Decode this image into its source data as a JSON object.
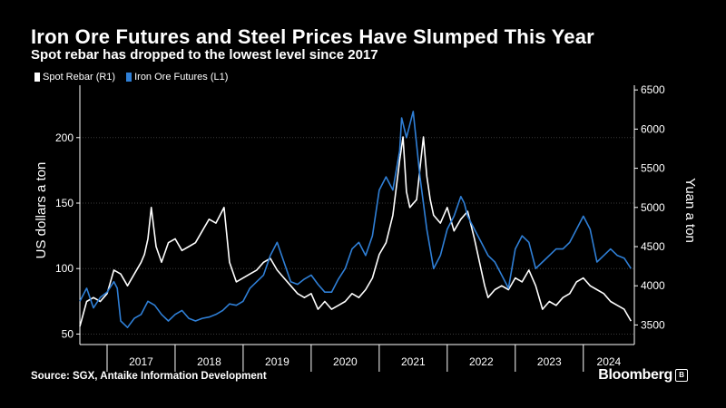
{
  "title": "Iron Ore Futures and Steel Prices Have Slumped This Year",
  "subtitle": "Spot rebar has dropped to the lowest level since 2017",
  "source": "Source: SGX, Antaike Information Development",
  "brand": "Bloomberg",
  "brand_badge": "B",
  "chart_data": {
    "type": "line",
    "categories": [
      "2017",
      "2018",
      "2019",
      "2020",
      "2021",
      "2022",
      "2023",
      "2024"
    ],
    "ylabel_left": "US dollars a ton",
    "ylabel_right": "Yuan a ton",
    "left_ticks": [
      "50",
      "100",
      "150",
      "200"
    ],
    "right_ticks": [
      "3500",
      "4000",
      "4500",
      "5000",
      "5500",
      "6000",
      "6500"
    ],
    "ylim_left": [
      42,
      240
    ],
    "ylim_right": [
      3250,
      6560
    ],
    "x_range": [
      2016.6,
      2024.75
    ],
    "legend_position": "top-left",
    "series": [
      {
        "name": "Spot Rebar (R1)",
        "axis": "right",
        "color": "#ffffff",
        "x": [
          2016.6,
          2016.7,
          2016.8,
          2016.9,
          2017.0,
          2017.1,
          2017.2,
          2017.3,
          2017.4,
          2017.5,
          2017.55,
          2017.6,
          2017.65,
          2017.72,
          2017.8,
          2017.9,
          2018.0,
          2018.1,
          2018.2,
          2018.3,
          2018.4,
          2018.5,
          2018.6,
          2018.72,
          2018.8,
          2018.9,
          2019.0,
          2019.1,
          2019.2,
          2019.3,
          2019.4,
          2019.5,
          2019.6,
          2019.7,
          2019.8,
          2019.9,
          2020.0,
          2020.1,
          2020.2,
          2020.3,
          2020.4,
          2020.5,
          2020.6,
          2020.7,
          2020.8,
          2020.9,
          2021.0,
          2021.1,
          2021.2,
          2021.3,
          2021.35,
          2021.4,
          2021.45,
          2021.5,
          2021.55,
          2021.6,
          2021.65,
          2021.7,
          2021.75,
          2021.8,
          2021.9,
          2022.0,
          2022.1,
          2022.2,
          2022.3,
          2022.4,
          2022.5,
          2022.55,
          2022.6,
          2022.7,
          2022.8,
          2022.9,
          2023.0,
          2023.1,
          2023.2,
          2023.3,
          2023.4,
          2023.5,
          2023.6,
          2023.7,
          2023.8,
          2023.9,
          2024.0,
          2024.1,
          2024.2,
          2024.3,
          2024.4,
          2024.5,
          2024.6,
          2024.7
        ],
        "y": [
          3480,
          3800,
          3850,
          3800,
          3900,
          4200,
          4150,
          4000,
          4150,
          4300,
          4400,
          4600,
          5000,
          4500,
          4300,
          4550,
          4600,
          4450,
          4500,
          4550,
          4700,
          4850,
          4800,
          5000,
          4300,
          4050,
          4100,
          4150,
          4200,
          4300,
          4350,
          4200,
          4100,
          4000,
          3900,
          3850,
          3900,
          3700,
          3800,
          3700,
          3750,
          3800,
          3900,
          3850,
          3950,
          4100,
          4400,
          4550,
          4900,
          5600,
          5900,
          5200,
          5000,
          5050,
          5100,
          5500,
          5900,
          5400,
          5100,
          4900,
          4800,
          5000,
          4700,
          4850,
          4950,
          4600,
          4200,
          4000,
          3850,
          3950,
          4000,
          3950,
          4100,
          4050,
          4200,
          4000,
          3700,
          3800,
          3750,
          3850,
          3900,
          4050,
          4100,
          4000,
          3950,
          3900,
          3800,
          3750,
          3700,
          3550
        ]
      },
      {
        "name": "Iron Ore Futures (L1)",
        "axis": "left",
        "color": "#2f7fd6",
        "x": [
          2016.6,
          2016.7,
          2016.8,
          2016.9,
          2017.0,
          2017.1,
          2017.15,
          2017.2,
          2017.3,
          2017.4,
          2017.5,
          2017.6,
          2017.7,
          2017.8,
          2017.9,
          2018.0,
          2018.1,
          2018.2,
          2018.3,
          2018.4,
          2018.5,
          2018.6,
          2018.7,
          2018.8,
          2018.9,
          2019.0,
          2019.1,
          2019.2,
          2019.3,
          2019.4,
          2019.5,
          2019.6,
          2019.7,
          2019.8,
          2019.9,
          2020.0,
          2020.1,
          2020.2,
          2020.3,
          2020.4,
          2020.5,
          2020.6,
          2020.7,
          2020.8,
          2020.9,
          2021.0,
          2021.1,
          2021.2,
          2021.3,
          2021.33,
          2021.4,
          2021.5,
          2021.6,
          2021.7,
          2021.8,
          2021.9,
          2022.0,
          2022.1,
          2022.2,
          2022.25,
          2022.3,
          2022.4,
          2022.5,
          2022.6,
          2022.7,
          2022.8,
          2022.9,
          2023.0,
          2023.1,
          2023.2,
          2023.3,
          2023.4,
          2023.5,
          2023.6,
          2023.7,
          2023.8,
          2023.9,
          2024.0,
          2024.1,
          2024.2,
          2024.3,
          2024.4,
          2024.5,
          2024.6,
          2024.7
        ],
        "y": [
          75,
          85,
          70,
          78,
          82,
          90,
          85,
          60,
          55,
          62,
          65,
          75,
          72,
          65,
          60,
          65,
          68,
          62,
          60,
          62,
          63,
          65,
          68,
          73,
          72,
          75,
          85,
          90,
          95,
          110,
          120,
          105,
          90,
          88,
          92,
          95,
          88,
          82,
          82,
          92,
          100,
          115,
          120,
          110,
          125,
          160,
          170,
          160,
          190,
          215,
          200,
          220,
          170,
          130,
          100,
          110,
          130,
          140,
          155,
          150,
          140,
          130,
          120,
          110,
          105,
          95,
          85,
          115,
          125,
          120,
          100,
          105,
          110,
          115,
          115,
          120,
          130,
          140,
          130,
          105,
          110,
          115,
          110,
          108,
          100
        ]
      }
    ]
  }
}
